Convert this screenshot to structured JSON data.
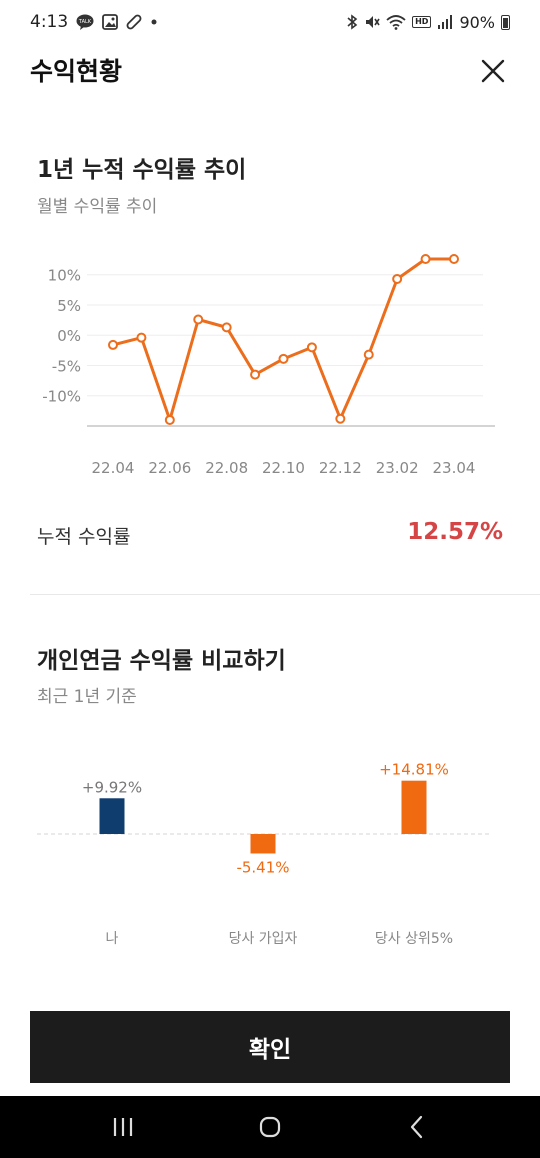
{
  "status_bar": {
    "time": "4:13",
    "battery": "90%",
    "hd_label": "HD",
    "left_icons": [
      "kakaotalk-icon",
      "gallery-icon",
      "pill-icon",
      "dot-icon"
    ],
    "right_icons": [
      "bluetooth-icon",
      "mute-icon",
      "wifi-icon",
      "hd-voice-icon",
      "signal-icon",
      "battery-icon"
    ]
  },
  "header": {
    "title": "수익현황",
    "close_icon": "close-icon"
  },
  "trend_section": {
    "title": "1년 누적 수익률 추이",
    "subtitle": "월별 수익률 추이"
  },
  "cumulative": {
    "label": "누적 수익률",
    "value": "12.57%"
  },
  "compare_section": {
    "title": "개인연금 수익률 비교하기",
    "subtitle": "최근 1년 기준"
  },
  "chart_data": [
    {
      "type": "line",
      "x": [
        "22.04",
        "22.05",
        "22.06",
        "22.07",
        "22.08",
        "22.09",
        "22.10",
        "22.11",
        "22.12",
        "23.01",
        "23.02",
        "23.03",
        "23.04"
      ],
      "series": [
        {
          "values": [
            -1.6,
            -0.4,
            -14,
            2.6,
            1.3,
            -6.5,
            -3.9,
            -2.0,
            -13.8,
            -3.2,
            9.3,
            12.6,
            12.6
          ]
        }
      ],
      "x_tick_labels": [
        "22.04",
        "22.06",
        "22.08",
        "22.10",
        "22.12",
        "23.02",
        "23.04"
      ],
      "y_tick_labels": [
        "10%",
        "5%",
        "0%",
        "-5%",
        "-10%"
      ],
      "y_ticks": [
        10,
        5,
        0,
        -5,
        -10
      ],
      "ylim": [
        -15,
        12.6
      ],
      "grid": true,
      "color": "#ec6d1c"
    },
    {
      "type": "bar",
      "categories": [
        "나",
        "당사 가입자",
        "당사 상위5%"
      ],
      "values": [
        9.92,
        -5.41,
        14.81
      ],
      "value_labels": [
        "+9.92%",
        "-5.41%",
        "+14.81%"
      ],
      "colors": [
        "#0e3d6e",
        "#f06a12",
        "#f06a12"
      ],
      "value_label_colors": [
        "#777777",
        "#f06a12",
        "#f06a12"
      ]
    }
  ],
  "footer": {
    "confirm_label": "확인"
  },
  "nav_bar": {
    "icons": [
      "recent-apps-icon",
      "home-icon",
      "back-icon"
    ]
  }
}
